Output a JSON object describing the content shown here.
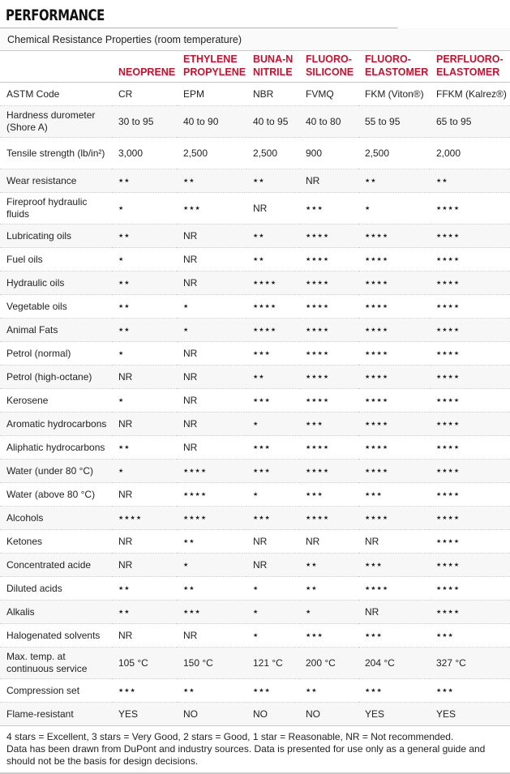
{
  "title": "PERFORMANCE",
  "subtitle": "Chemical Resistance Properties (room temperature)",
  "brand_color": "#c8102e",
  "columns": [
    "",
    "NEOPRENE",
    "ETHYLENE PROPYLENE",
    "BUNA-N NITRILE",
    "FLUORO- SILICONE",
    "FLUORO- ELASTOMER",
    "PERFLUORO- ELASTOMER"
  ],
  "rows": [
    {
      "label": "ASTM Code",
      "values": [
        "CR",
        "EPM",
        "NBR",
        "FVMQ",
        "FKM (Viton®)",
        "FFKM (Kalrez®)"
      ]
    },
    {
      "label": "Hardness durometer (Shore A)",
      "values": [
        "30 to 95",
        "40 to 90",
        "40 to 95",
        "40 to 80",
        "55 to 95",
        "65 to 95"
      ]
    },
    {
      "label": "Tensile strength (lb/in²)",
      "values": [
        "3,000",
        "2,500",
        "2,500",
        "900",
        "2,500",
        "2,000"
      ]
    },
    {
      "label": "Wear resistance",
      "values": [
        "**",
        "**",
        "**",
        "NR",
        "**",
        "**"
      ]
    },
    {
      "label": "Fireproof hydraulic fluids",
      "values": [
        "*",
        "***",
        "NR",
        "***",
        "*",
        "****"
      ]
    },
    {
      "label": "Lubricating oils",
      "values": [
        "**",
        "NR",
        "**",
        "****",
        "****",
        "****"
      ]
    },
    {
      "label": "Fuel oils",
      "values": [
        "*",
        "NR",
        "**",
        "****",
        "****",
        "****"
      ]
    },
    {
      "label": "Hydraulic oils",
      "values": [
        "**",
        "NR",
        "****",
        "****",
        "****",
        "****"
      ]
    },
    {
      "label": "Vegetable oils",
      "values": [
        "**",
        "*",
        "****",
        "****",
        "****",
        "****"
      ]
    },
    {
      "label": "Animal Fats",
      "values": [
        "**",
        "*",
        "****",
        "****",
        "****",
        "****"
      ]
    },
    {
      "label": "Petrol (normal)",
      "values": [
        "*",
        "NR",
        "***",
        "****",
        "****",
        "****"
      ]
    },
    {
      "label": "Petrol (high-octane)",
      "values": [
        "NR",
        "NR",
        "**",
        "****",
        "****",
        "****"
      ]
    },
    {
      "label": "Kerosene",
      "values": [
        "*",
        "NR",
        "***",
        "****",
        "****",
        "****"
      ]
    },
    {
      "label": "Aromatic hydrocarbons",
      "values": [
        "NR",
        "NR",
        "*",
        "***",
        "****",
        "****"
      ]
    },
    {
      "label": "Aliphatic hydrocarbons",
      "values": [
        "**",
        "NR",
        "***",
        "****",
        "****",
        "****"
      ]
    },
    {
      "label": "Water (under 80 °C)",
      "values": [
        "*",
        "****",
        "***",
        "****",
        "****",
        "****"
      ]
    },
    {
      "label": "Water (above 80 °C)",
      "values": [
        "NR",
        "****",
        "*",
        "***",
        "***",
        "****"
      ]
    },
    {
      "label": "Alcohols",
      "values": [
        "****",
        "****",
        "***",
        "****",
        "****",
        "****"
      ]
    },
    {
      "label": "Ketones",
      "values": [
        "NR",
        "**",
        "NR",
        "NR",
        "NR",
        "****"
      ]
    },
    {
      "label": "Concentrated acide",
      "values": [
        "NR",
        "*",
        "NR",
        "**",
        "***",
        "****"
      ]
    },
    {
      "label": "Diluted acids",
      "values": [
        "**",
        "**",
        "*",
        "**",
        "****",
        "****"
      ]
    },
    {
      "label": "Alkalis",
      "values": [
        "**",
        "***",
        "*",
        "*",
        "NR",
        "****"
      ]
    },
    {
      "label": "Halogenated solvents",
      "values": [
        "NR",
        "NR",
        "*",
        "***",
        "***",
        "***"
      ]
    },
    {
      "label": "Max. temp. at continuous service",
      "values": [
        "105 °C",
        "150 °C",
        "121 °C",
        "200 °C",
        "204 °C",
        "327 °C"
      ]
    },
    {
      "label": "Compression set",
      "values": [
        "***",
        "**",
        "***",
        "**",
        "***",
        "***"
      ]
    },
    {
      "label": "Flame-resistant",
      "values": [
        "YES",
        "NO",
        "NO",
        "NO",
        "YES",
        "YES"
      ]
    }
  ],
  "footer": {
    "legend": "4 stars = Excellent, 3 stars = Very Good, 2 stars = Good, 1 star = Reasonable, NR = Not recommended.",
    "disclaimer": "Data has been drawn from DuPont and industry sources. Data is presented for use only as a general guide and should not be the basis for design decisions."
  }
}
